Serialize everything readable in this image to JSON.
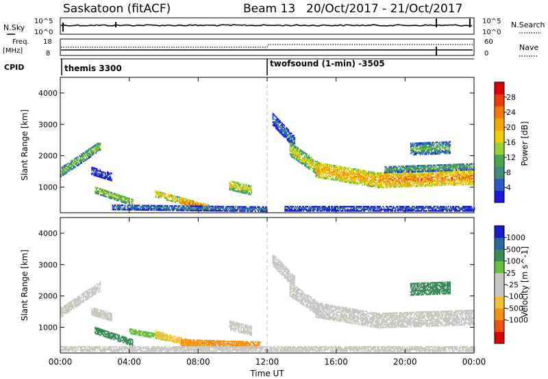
{
  "header": {
    "station": "Saskatoon (fitACF)",
    "beam": "Beam 13",
    "date_range": "20/Oct/2017 - 21/Oct/2017"
  },
  "strip": {
    "nsky_label": "N.Sky",
    "nsky_ticks": [
      "10^5",
      "10^0"
    ],
    "nsearch_label": "N.Search",
    "nsearch_ticks": [
      "10^5",
      "10^0"
    ],
    "freq_label": "Freq.",
    "freq_unit": "[MHz]",
    "freq_ticks": [
      "18",
      "8"
    ],
    "nave_label": "Nave",
    "nave_ticks": [
      "60",
      "0"
    ],
    "cpid_label": "CPID",
    "cpid_modes": [
      {
        "name": "themis 3300",
        "start_hour": 0
      },
      {
        "name": "twofsound (1-min) -3505",
        "start_hour": 12
      }
    ]
  },
  "colors": {
    "power_scale": [
      "#1a1adf",
      "#2a5cc8",
      "#3f8c7a",
      "#49a84d",
      "#9ad032",
      "#f2d000",
      "#f5a800",
      "#f57a00",
      "#ee3a00",
      "#d80000"
    ],
    "velocity_scale": [
      "#d80000",
      "#f05010",
      "#f59010",
      "#f5c030",
      "#c8c8c0",
      "#c8c8c0",
      "#66c040",
      "#3a8a5a",
      "#2a6aa0",
      "#1a1acf"
    ]
  },
  "chart_data": [
    {
      "type": "heatmap",
      "panel": "power",
      "x_range_hours": [
        0,
        24
      ],
      "ylim": [
        180,
        4500
      ],
      "ylabel": "Slant Range [km]",
      "yticks": [
        1000,
        2000,
        3000,
        4000
      ],
      "xticks": [
        "00:00",
        "04:00",
        "08:00",
        "12:00",
        "16:00",
        "20:00",
        "00:00"
      ],
      "colorbar": {
        "label": "Power [dB]",
        "min": 0,
        "max": 32,
        "ticks": [
          4,
          8,
          12,
          16,
          20,
          24,
          28
        ]
      },
      "regions": [
        {
          "t0": 0.0,
          "t1": 2.3,
          "r_start": 1450,
          "r_end": 2300,
          "thick": 280,
          "value": 14
        },
        {
          "t0": 1.8,
          "t1": 3.0,
          "r_start": 1500,
          "r_end": 1300,
          "thick": 240,
          "value": 6
        },
        {
          "t0": 2.0,
          "t1": 4.2,
          "r_start": 900,
          "r_end": 500,
          "thick": 220,
          "value": 16
        },
        {
          "t0": 5.5,
          "t1": 8.6,
          "r_start": 780,
          "r_end": 330,
          "thick": 220,
          "value": 20
        },
        {
          "t0": 7.0,
          "t1": 8.3,
          "r_start": 480,
          "r_end": 380,
          "thick": 160,
          "value": 26
        },
        {
          "t0": 9.8,
          "t1": 11.1,
          "r_start": 1050,
          "r_end": 880,
          "thick": 300,
          "value": 18
        },
        {
          "t0": 3.0,
          "t1": 12.0,
          "r_start": 340,
          "r_end": 280,
          "thick": 150,
          "value": 9
        },
        {
          "t0": 12.3,
          "t1": 13.6,
          "r_start": 3150,
          "r_end": 2400,
          "thick": 380,
          "value": 8
        },
        {
          "t0": 13.3,
          "t1": 15.0,
          "r_start": 2200,
          "r_end": 1550,
          "thick": 420,
          "value": 18
        },
        {
          "t0": 14.8,
          "t1": 18.5,
          "r_start": 1550,
          "r_end": 1200,
          "thick": 480,
          "value": 22
        },
        {
          "t0": 18.5,
          "t1": 24.0,
          "r_start": 1200,
          "r_end": 1300,
          "thick": 460,
          "value": 24
        },
        {
          "t0": 18.8,
          "t1": 24.0,
          "r_start": 1550,
          "r_end": 1650,
          "thick": 220,
          "value": 12
        },
        {
          "t0": 20.3,
          "t1": 22.6,
          "r_start": 2200,
          "r_end": 2250,
          "thick": 380,
          "value": 12
        },
        {
          "t0": 13.0,
          "t1": 24.0,
          "r_start": 300,
          "r_end": 300,
          "thick": 160,
          "value": 6
        }
      ]
    },
    {
      "type": "heatmap",
      "panel": "velocity",
      "x_range_hours": [
        0,
        24
      ],
      "ylim": [
        180,
        4500
      ],
      "ylabel": "Slant Range [km]",
      "xlabel": "Time UT",
      "yticks": [
        1000,
        2000,
        3000,
        4000
      ],
      "xticks": [
        "00:00",
        "04:00",
        "08:00",
        "12:00",
        "16:00",
        "20:00",
        "00:00"
      ],
      "colorbar": {
        "label": "Velocity [m s^-1]",
        "ticks": [
          "1000",
          "500",
          "100",
          "25",
          "-25",
          "-100",
          "-500",
          "-1000"
        ]
      },
      "regions": [
        {
          "t0": 0.0,
          "t1": 2.3,
          "r_start": 1450,
          "r_end": 2300,
          "thick": 280,
          "value": 0
        },
        {
          "t0": 1.8,
          "t1": 3.0,
          "r_start": 1500,
          "r_end": 1300,
          "thick": 240,
          "value": 0
        },
        {
          "t0": 2.0,
          "t1": 4.2,
          "r_start": 900,
          "r_end": 500,
          "thick": 220,
          "value": 120
        },
        {
          "t0": 4.0,
          "t1": 6.2,
          "r_start": 880,
          "r_end": 650,
          "thick": 180,
          "value": 60
        },
        {
          "t0": 5.5,
          "t1": 8.6,
          "r_start": 780,
          "r_end": 330,
          "thick": 220,
          "value": -60
        },
        {
          "t0": 7.0,
          "t1": 11.6,
          "r_start": 500,
          "r_end": 420,
          "thick": 200,
          "value": -150
        },
        {
          "t0": 9.8,
          "t1": 11.1,
          "r_start": 1050,
          "r_end": 880,
          "thick": 300,
          "value": 0
        },
        {
          "t0": 12.3,
          "t1": 13.6,
          "r_start": 3150,
          "r_end": 2400,
          "thick": 380,
          "value": 0
        },
        {
          "t0": 13.3,
          "t1": 15.0,
          "r_start": 2200,
          "r_end": 1550,
          "thick": 420,
          "value": 0
        },
        {
          "t0": 14.8,
          "t1": 18.5,
          "r_start": 1550,
          "r_end": 1200,
          "thick": 480,
          "value": 0
        },
        {
          "t0": 18.5,
          "t1": 24.0,
          "r_start": 1200,
          "r_end": 1300,
          "thick": 460,
          "value": 0
        },
        {
          "t0": 20.3,
          "t1": 22.6,
          "r_start": 2200,
          "r_end": 2250,
          "thick": 380,
          "value": 200
        },
        {
          "t0": 0.0,
          "t1": 24.0,
          "r_start": 300,
          "r_end": 300,
          "thick": 160,
          "value": 0
        }
      ]
    }
  ]
}
